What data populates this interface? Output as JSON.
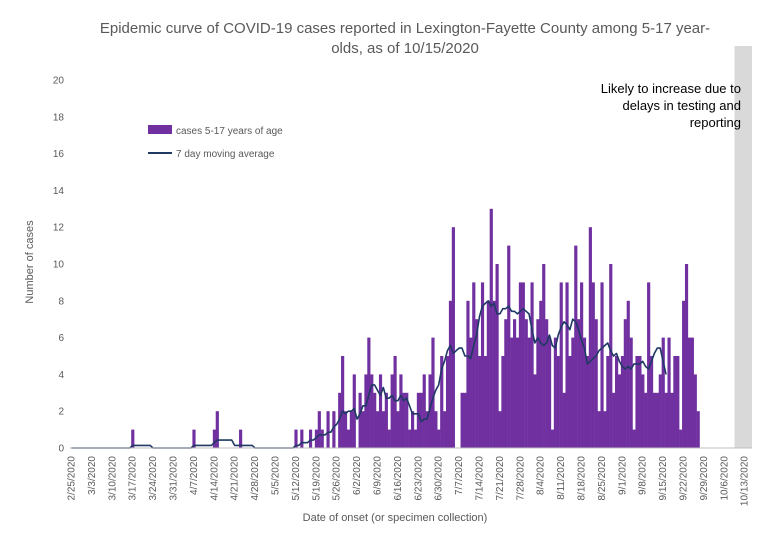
{
  "chart_data": {
    "type": "bar",
    "title_lines": [
      "Epidemic curve of COVID-19 cases reported in Lexington-Fayette County among 5-17 year-",
      "olds, as of 10/15/2020"
    ],
    "xlabel": "Date of onset (or specimen collection)",
    "ylabel": "Number of cases",
    "ylim": [
      0,
      20
    ],
    "yticks": [
      0,
      2,
      4,
      6,
      8,
      10,
      12,
      14,
      16,
      18,
      20
    ],
    "x_start": "2/25/2020",
    "x_end": "10/15/2020",
    "xtick_labels": [
      "2/25/2020",
      "3/3/2020",
      "3/10/2020",
      "3/17/2020",
      "3/24/2020",
      "3/31/2020",
      "4/7/2020",
      "4/14/2020",
      "4/21/2020",
      "4/28/2020",
      "5/5/2020",
      "5/12/2020",
      "5/19/2020",
      "5/26/2020",
      "6/2/2020",
      "6/9/2020",
      "6/16/2020",
      "6/23/2020",
      "6/30/2020",
      "7/7/2020",
      "7/14/2020",
      "7/21/2020",
      "7/28/2020",
      "8/4/2020",
      "8/11/2020",
      "8/18/2020",
      "8/25/2020",
      "9/1/2020",
      "9/8/2020",
      "9/15/2020",
      "9/22/2020",
      "9/29/2020",
      "10/6/2020",
      "10/13/2020"
    ],
    "grid": false,
    "legend_position": "top-left",
    "series": [
      {
        "name": "cases 5-17 years of age",
        "type": "bar",
        "color": "#7030a0",
        "values": [
          0,
          0,
          0,
          0,
          0,
          0,
          0,
          0,
          0,
          0,
          0,
          0,
          0,
          0,
          0,
          0,
          0,
          0,
          0,
          0,
          0,
          1,
          0,
          0,
          0,
          0,
          0,
          0,
          0,
          0,
          0,
          0,
          0,
          0,
          0,
          0,
          0,
          0,
          0,
          0,
          0,
          0,
          1,
          0,
          0,
          0,
          0,
          0,
          0,
          1,
          2,
          0,
          0,
          0,
          0,
          0,
          0,
          0,
          1,
          0,
          0,
          0,
          0,
          0,
          0,
          0,
          0,
          0,
          0,
          0,
          0,
          0,
          0,
          0,
          0,
          0,
          0,
          1,
          0,
          1,
          0,
          0,
          1,
          0,
          1,
          2,
          1,
          0,
          2,
          0,
          2,
          0,
          3,
          5,
          2,
          1,
          2,
          4,
          0,
          3,
          2,
          4,
          6,
          4,
          3,
          2,
          4,
          2,
          3,
          1,
          4,
          5,
          2,
          4,
          3,
          3,
          1,
          2,
          1,
          3,
          3,
          4,
          2,
          4,
          6,
          2,
          1,
          5,
          2,
          5,
          8,
          12,
          0,
          0,
          3,
          3,
          8,
          6,
          9,
          7,
          5,
          9,
          5,
          8,
          13,
          8,
          10,
          2,
          5,
          7,
          11,
          6,
          7,
          6,
          9,
          9,
          7,
          6,
          9,
          4,
          7,
          8,
          10,
          7,
          6,
          1,
          6,
          5,
          9,
          3,
          9,
          5,
          6,
          11,
          7,
          9,
          6,
          5,
          12,
          9,
          7,
          2,
          9,
          2,
          5,
          10,
          3,
          5,
          4,
          5,
          7,
          8,
          6,
          1,
          5,
          5,
          4,
          3,
          9,
          5,
          3,
          3,
          4,
          6,
          3,
          6,
          3,
          5,
          5,
          1,
          8,
          10,
          6,
          6,
          4,
          2
        ]
      },
      {
        "name": "7 day moving average",
        "type": "line",
        "color": "#1f3864",
        "values": [
          0,
          0,
          0,
          0,
          0,
          0,
          0,
          0,
          0,
          0,
          0,
          0,
          0,
          0,
          0,
          0,
          0,
          0,
          0,
          0,
          0,
          0.14,
          0.14,
          0.14,
          0.14,
          0.14,
          0.14,
          0.14,
          0,
          0,
          0,
          0,
          0,
          0,
          0,
          0,
          0,
          0,
          0,
          0,
          0,
          0,
          0.14,
          0.14,
          0.14,
          0.14,
          0.14,
          0.14,
          0.14,
          0.29,
          0.43,
          0.43,
          0.43,
          0.43,
          0.43,
          0.43,
          0.14,
          0.14,
          0.14,
          0.14,
          0.14,
          0.14,
          0.14,
          0,
          0,
          0,
          0,
          0,
          0,
          0,
          0,
          0,
          0,
          0,
          0,
          0,
          0,
          0.14,
          0.14,
          0.29,
          0.29,
          0.29,
          0.43,
          0.43,
          0.57,
          0.71,
          0.71,
          0.71,
          0.86,
          0.86,
          1.14,
          1.29,
          1.57,
          2,
          1.86,
          2,
          2,
          2.14,
          1.57,
          1.86,
          2.29,
          2.29,
          2.86,
          3.43,
          3.43,
          3.14,
          2.86,
          3.29,
          2.71,
          2.71,
          2.86,
          2.57,
          2.57,
          2.86,
          2.57,
          2.71,
          2.29,
          1.86,
          1.86,
          1.86,
          1.43,
          1.57,
          1.57,
          2.14,
          2.71,
          3.14,
          3.43,
          4.29,
          4.71,
          5.29,
          5.57,
          5.14,
          5.29,
          5.43,
          5.43,
          5,
          5,
          4.86,
          5.57,
          6.14,
          7.14,
          7.71,
          7.86,
          8,
          7.71,
          7.86,
          7.29,
          7.29,
          7.57,
          7.57,
          7.71,
          7.43,
          7.43,
          7.29,
          7.43,
          7.57,
          7.43,
          7.29,
          6.43,
          5.71,
          6,
          5.71,
          5.57,
          5.71,
          6.14,
          5.57,
          5.43,
          6.14,
          6.57,
          6.86,
          6.71,
          6.43,
          7,
          6.86,
          6.43,
          5.86,
          5.43,
          4.57,
          4.71,
          4.86,
          5,
          5.29,
          5.43,
          5.57,
          5.71,
          5.29,
          5,
          5.14,
          4.71,
          4.43,
          4.29,
          4.43,
          4.29,
          4.57,
          4.57,
          4.57,
          4.71,
          4.43,
          4.29,
          4.71,
          5.14,
          5.43,
          5.43,
          4.71,
          4
        ]
      }
    ],
    "shaded_region": {
      "from": "10/10/2020",
      "to": "10/15/2020",
      "color": "#d9d9d9"
    },
    "annotation": {
      "lines": [
        "Likely to increase due to",
        "delays in testing and",
        "reporting"
      ]
    }
  }
}
